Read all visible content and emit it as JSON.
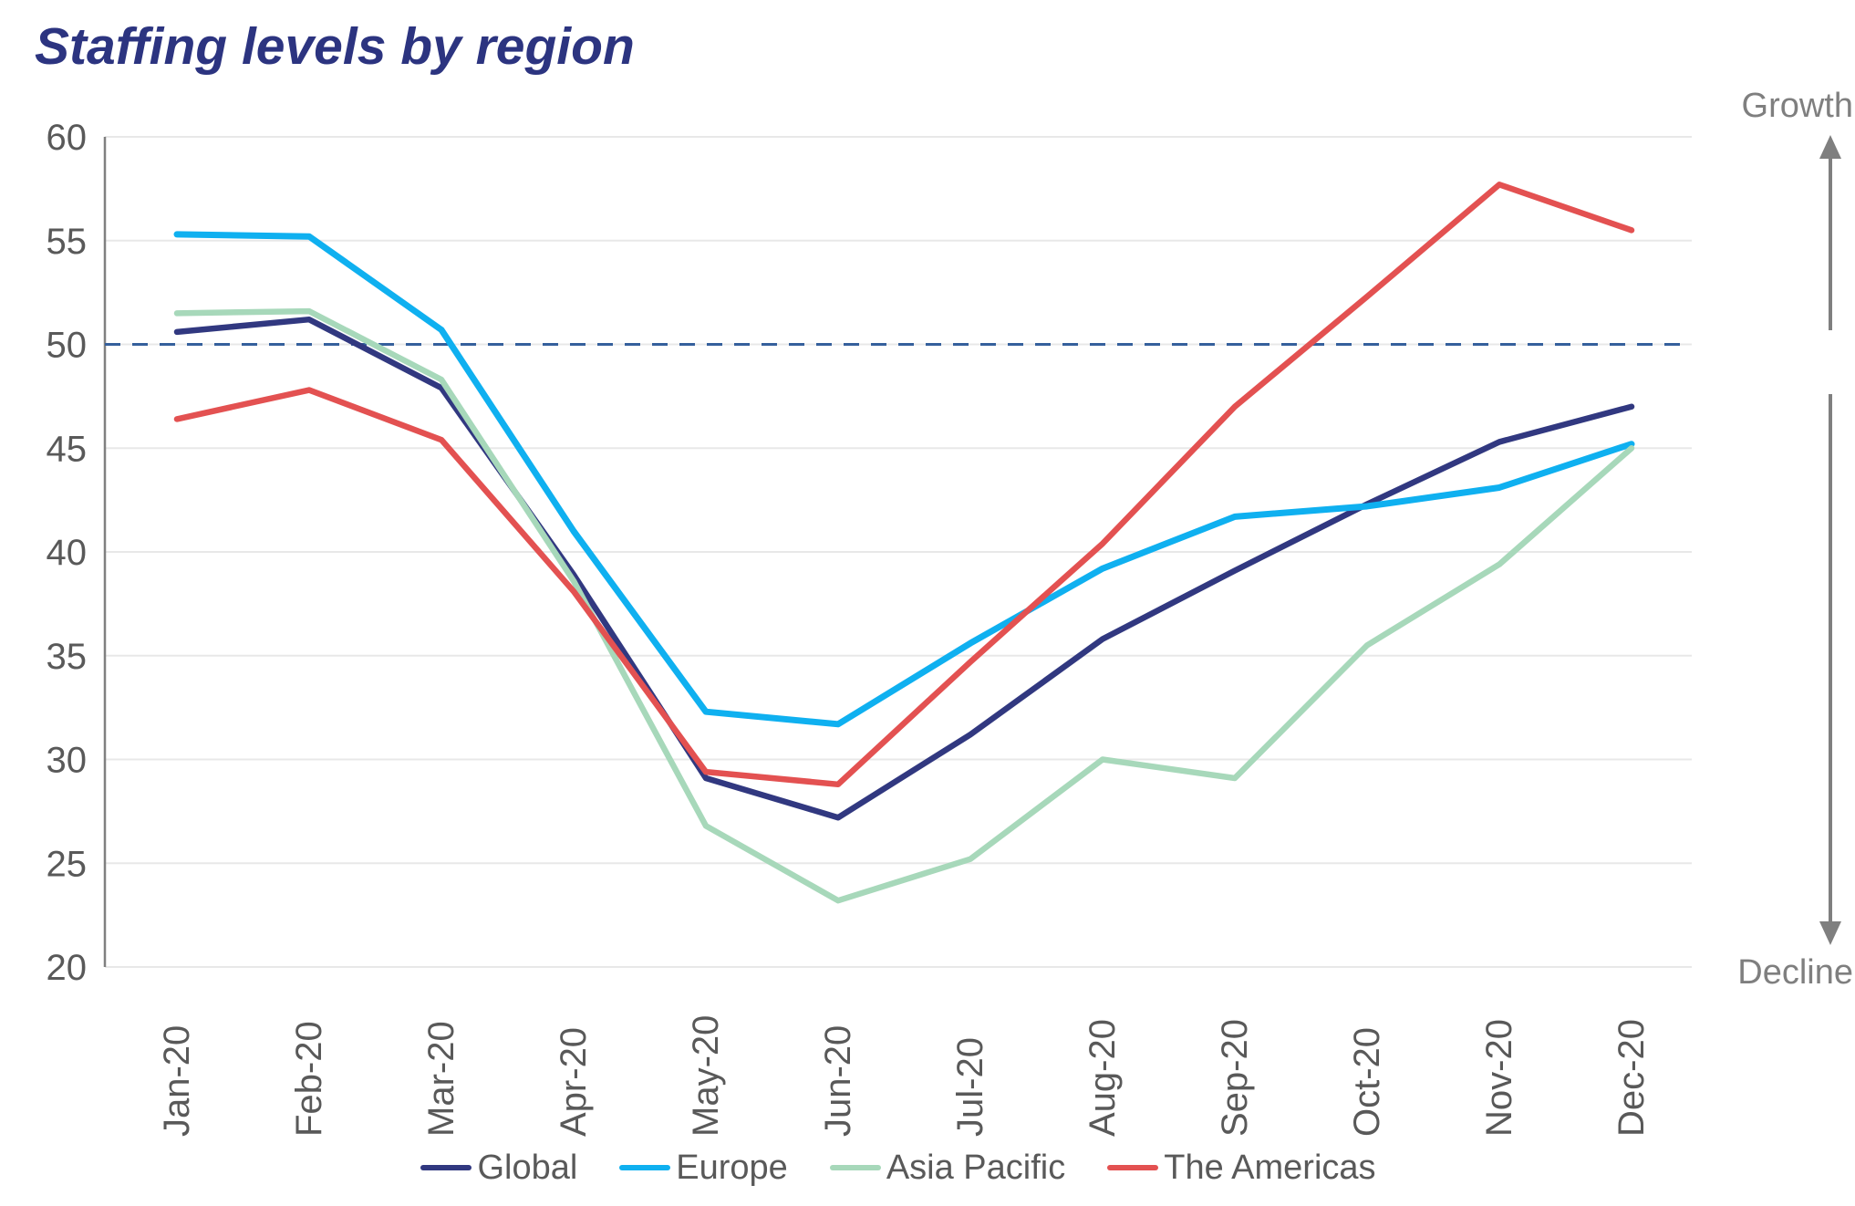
{
  "title": "Staffing levels by region",
  "annotations": {
    "growth_label": "Growth",
    "decline_label": "Decline",
    "annotation_color": "#7f7f7f"
  },
  "chart_data": {
    "type": "line",
    "title": "Staffing levels by region",
    "categories": [
      "Jan-20",
      "Feb-20",
      "Mar-20",
      "Apr-20",
      "May-20",
      "Jun-20",
      "Jul-20",
      "Aug-20",
      "Sep-20",
      "Oct-20",
      "Nov-20",
      "Dec-20"
    ],
    "series": [
      {
        "name": "Global",
        "color": "#313880",
        "width": 6.5,
        "values": [
          50.6,
          51.2,
          47.9,
          38.9,
          29.1,
          27.2,
          31.2,
          35.8,
          39.1,
          42.3,
          45.3,
          47.0
        ]
      },
      {
        "name": "Europe",
        "color": "#0fb0f0",
        "width": 7,
        "values": [
          55.3,
          55.2,
          50.7,
          41.0,
          32.3,
          31.7,
          35.6,
          39.2,
          41.7,
          42.2,
          43.1,
          45.2
        ]
      },
      {
        "name": "Asia Pacific",
        "color": "#a7d8ba",
        "width": 6.5,
        "values": [
          51.5,
          51.6,
          48.3,
          38.6,
          26.8,
          23.2,
          25.2,
          30.0,
          29.1,
          35.5,
          39.4,
          45.0
        ]
      },
      {
        "name": "The Americas",
        "color": "#e35151",
        "width": 6.5,
        "values": [
          46.4,
          47.8,
          45.4,
          38.1,
          29.4,
          28.8,
          34.7,
          40.4,
          47.0,
          52.3,
          57.7,
          55.5
        ]
      }
    ],
    "y_ticks": [
      20,
      25,
      30,
      35,
      40,
      45,
      50,
      55,
      60
    ],
    "ylim": [
      20,
      60
    ],
    "baseline": {
      "value": 50,
      "style": "dashed",
      "color": "#35609c"
    },
    "grid": "horizontal",
    "grid_color": "#e8e8e8",
    "axis_color": "#808080",
    "tick_color": "#595959",
    "legend_position": "bottom"
  }
}
